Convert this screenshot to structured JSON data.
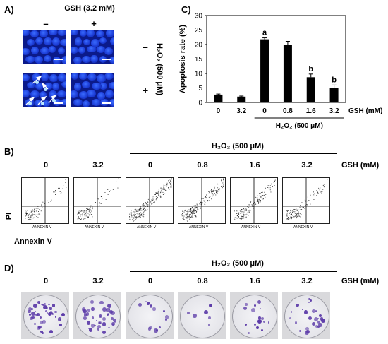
{
  "panels": {
    "A": "A)",
    "B": "B)",
    "C": "C)",
    "D": "D)"
  },
  "panelA": {
    "gsh_header": "GSH (3.2 mM)",
    "col_minus": "–",
    "col_plus": "+",
    "side_label": "H₂O₂ (500 μM)",
    "row_minus": "–",
    "row_plus": "+"
  },
  "panelB": {
    "conditions": [
      "0",
      "3.2",
      "0",
      "0.8",
      "1.6",
      "3.2"
    ],
    "h2o2_label": "H₂O₂ (500 μM)",
    "gsh_label": "GSH (mM)",
    "ylabel": "PI",
    "xlabel": "Annexin V",
    "plot_xlabel": "ANNEXIN-V",
    "ticks": [
      "10⁰",
      "10¹",
      "10²",
      "10³",
      "10⁴"
    ]
  },
  "panelD": {
    "conditions": [
      "0",
      "3.2",
      "0",
      "0.8",
      "1.6",
      "3.2"
    ],
    "h2o2_label": "H₂O₂ (500 μM)",
    "gsh_label": "GSH (mM)"
  },
  "chart_data": {
    "type": "bar",
    "ylabel": "Apoptosis rate (%)",
    "categories": [
      "0",
      "3.2",
      "0",
      "0.8",
      "1.6",
      "3.2"
    ],
    "values": [
      2.7,
      2.0,
      21.8,
      19.9,
      8.7,
      4.9
    ],
    "errors": [
      0.2,
      0.2,
      0.5,
      1.2,
      1.1,
      1.1
    ],
    "significance": [
      "",
      "",
      "a",
      "",
      "b",
      "b"
    ],
    "ylim": [
      0,
      30
    ],
    "yticks": [
      0,
      5,
      10,
      15,
      20,
      25,
      30
    ],
    "gsh_label": "GSH (mM)",
    "h2o2_label": "H₂O₂ (500 μM)",
    "bar_color": "#000000"
  }
}
